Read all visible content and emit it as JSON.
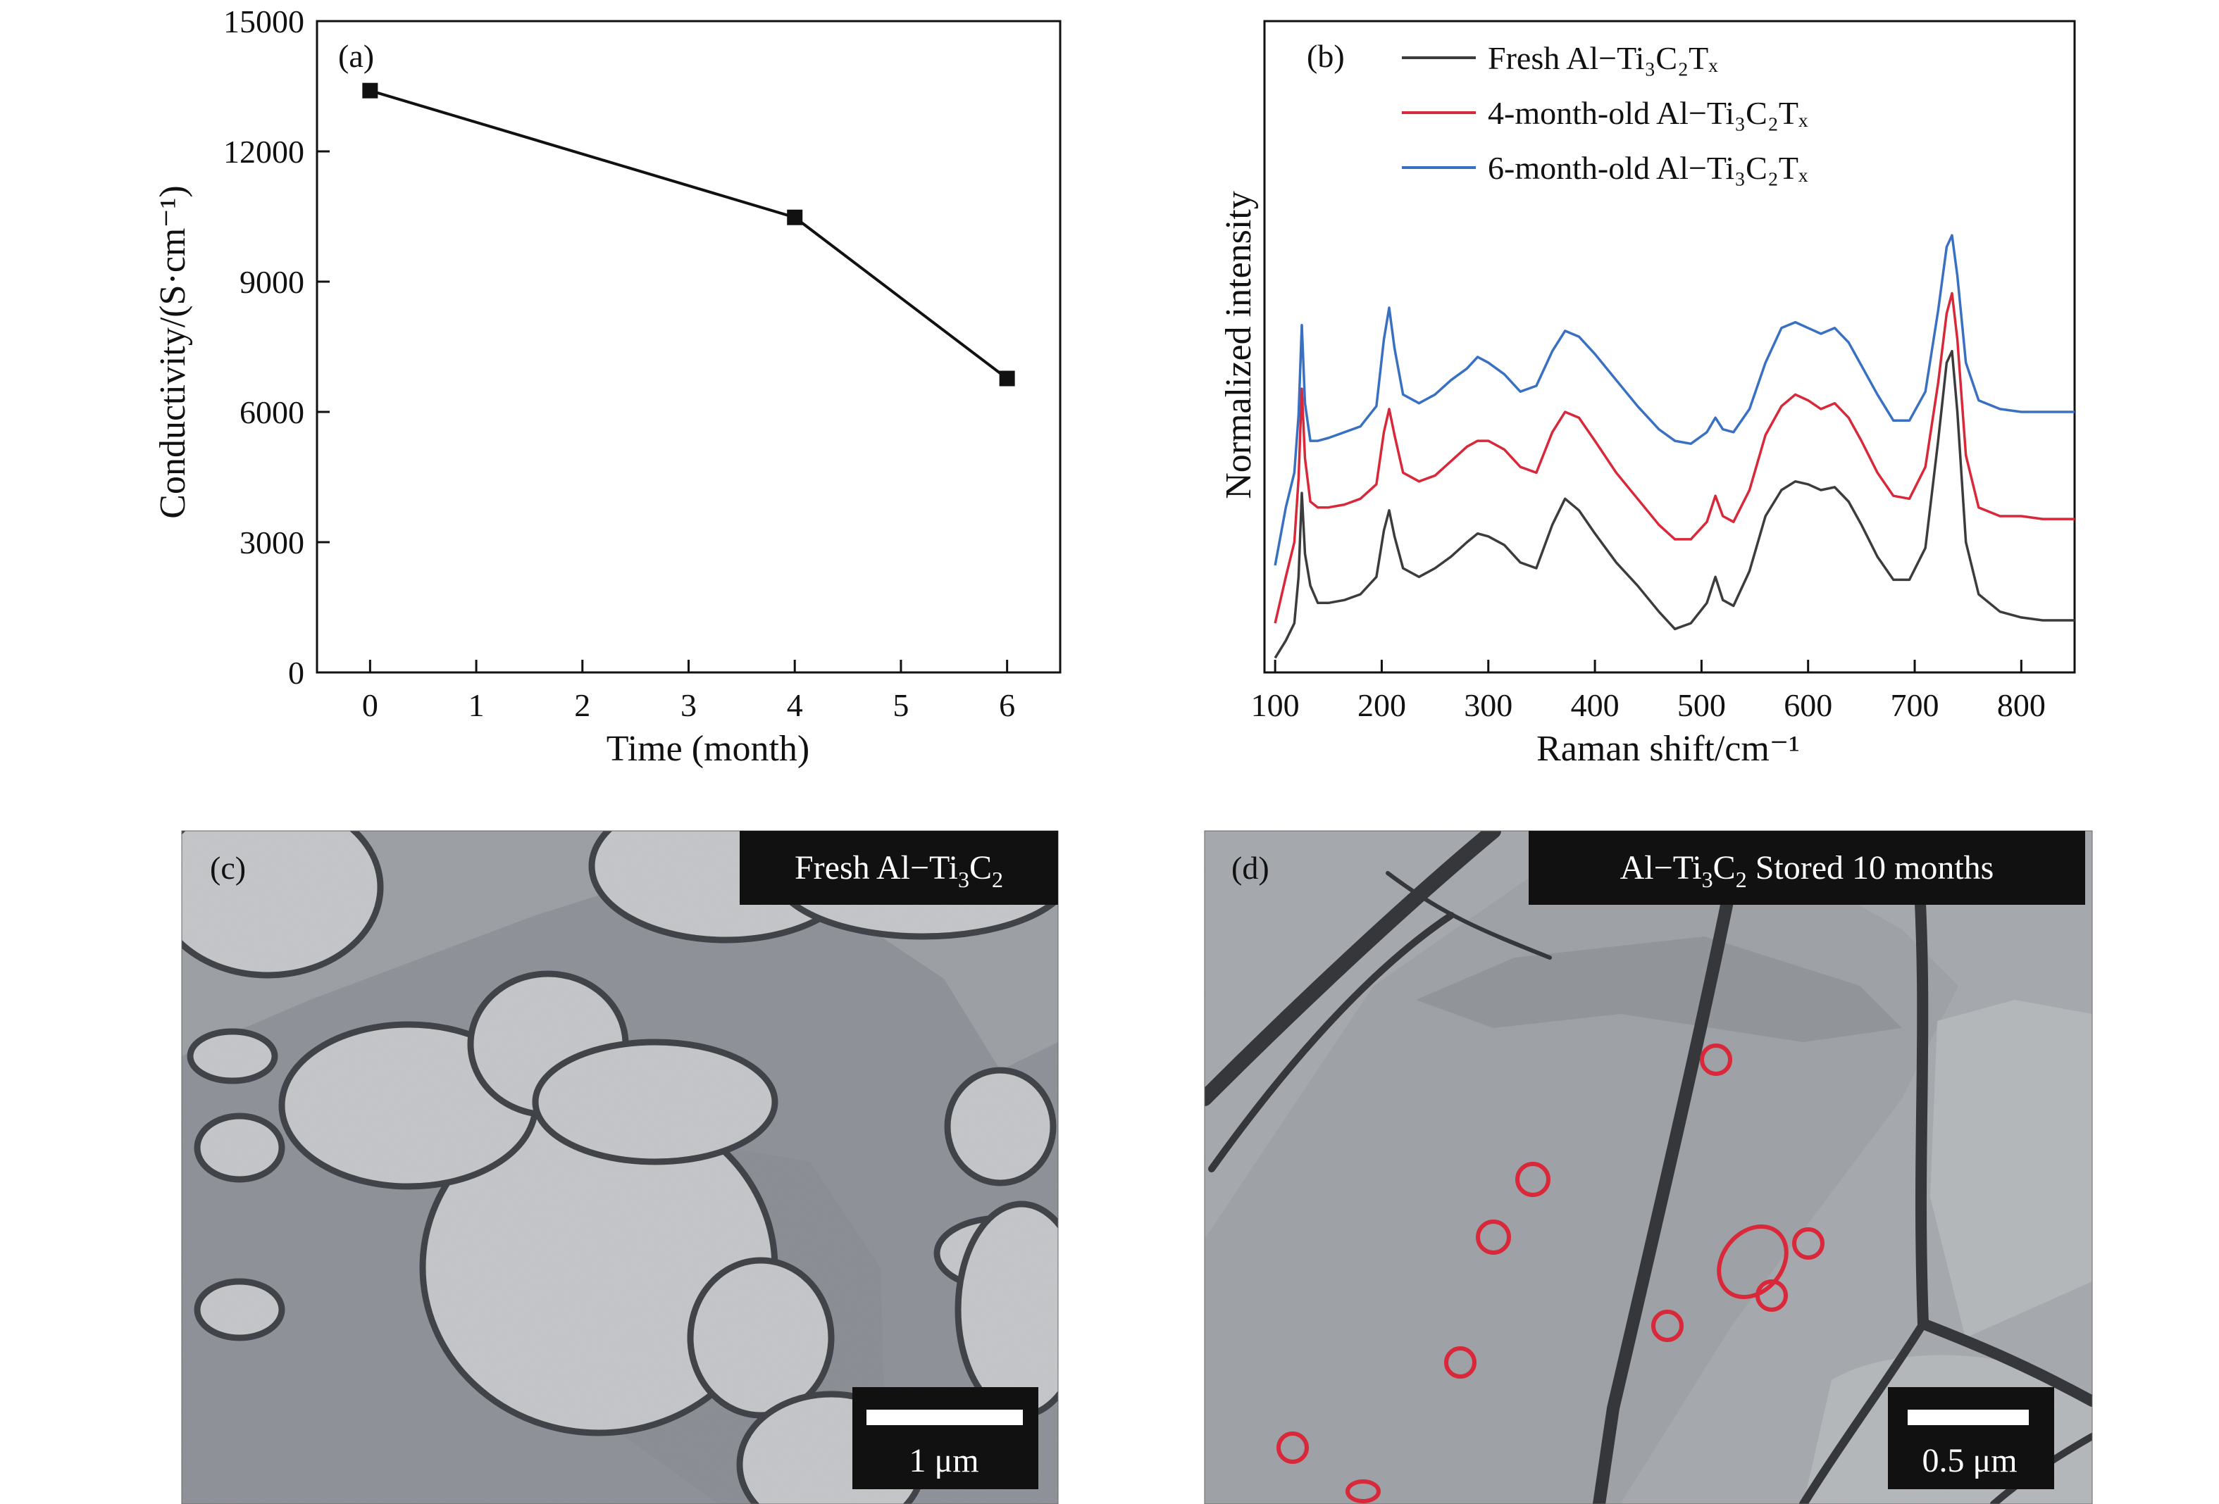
{
  "panels": {
    "a": {
      "label": "(a)",
      "chart_data": {
        "type": "line",
        "x": [
          0,
          4,
          6
        ],
        "values": [
          13400,
          10480,
          6770
        ],
        "xlabel": "Time (month)",
        "ylabel": "Conductivity/(S·cm⁻¹)",
        "xlim": [
          -0.5,
          6.5
        ],
        "ylim": [
          0,
          15000
        ],
        "xticks": [
          0,
          1,
          2,
          3,
          4,
          5,
          6
        ],
        "yticks": [
          0,
          3000,
          6000,
          9000,
          12000,
          15000
        ],
        "marker": "square",
        "line_color": "#111111",
        "grid": false
      }
    },
    "b": {
      "label": "(b)",
      "chart_data": {
        "type": "line",
        "xlabel": "Raman shift/cm⁻¹",
        "ylabel": "Normalized intensity",
        "xlim": [
          90,
          850
        ],
        "xticks": [
          100,
          200,
          300,
          400,
          500,
          600,
          700,
          800
        ],
        "y_tick_labels": false,
        "grid": false,
        "legend_position": "top",
        "x": [
          100,
          110,
          118,
          122,
          125,
          128,
          133,
          140,
          150,
          165,
          180,
          195,
          202,
          207,
          212,
          220,
          235,
          250,
          265,
          280,
          290,
          300,
          315,
          330,
          345,
          360,
          372,
          385,
          400,
          420,
          440,
          460,
          475,
          490,
          505,
          513,
          520,
          530,
          545,
          560,
          575,
          588,
          600,
          612,
          625,
          638,
          650,
          665,
          680,
          695,
          710,
          722,
          730,
          735,
          740,
          748,
          760,
          780,
          800,
          820,
          850
        ],
        "series": [
          {
            "name": "Fresh Al−Ti₃C₂Tₓ",
            "color": "#3c3c3c",
            "values": [
              0.0,
              0.6,
              1.2,
              2.8,
              5.7,
              3.6,
              2.5,
              1.9,
              1.9,
              2.0,
              2.2,
              2.8,
              4.4,
              5.1,
              4.2,
              3.1,
              2.8,
              3.1,
              3.5,
              4.0,
              4.3,
              4.2,
              3.9,
              3.3,
              3.1,
              4.6,
              5.5,
              5.1,
              4.3,
              3.3,
              2.5,
              1.6,
              1.0,
              1.2,
              1.9,
              2.8,
              2.0,
              1.8,
              3.0,
              4.9,
              5.8,
              6.1,
              6.0,
              5.8,
              5.9,
              5.4,
              4.6,
              3.5,
              2.7,
              2.7,
              3.8,
              7.5,
              10.2,
              10.6,
              8.5,
              4.0,
              2.2,
              1.6,
              1.4,
              1.3,
              1.3
            ]
          },
          {
            "name": "4-month-old Al−Ti₃C₂Tₓ",
            "color": "#d8283a",
            "values": [
              1.2,
              2.8,
              4.0,
              6.2,
              9.3,
              6.9,
              5.4,
              5.2,
              5.2,
              5.3,
              5.5,
              6.0,
              7.8,
              8.6,
              7.7,
              6.4,
              6.1,
              6.3,
              6.8,
              7.3,
              7.5,
              7.5,
              7.2,
              6.6,
              6.4,
              7.8,
              8.5,
              8.3,
              7.5,
              6.4,
              5.5,
              4.6,
              4.1,
              4.1,
              4.7,
              5.6,
              4.9,
              4.7,
              5.8,
              7.7,
              8.7,
              9.1,
              8.9,
              8.6,
              8.8,
              8.3,
              7.5,
              6.4,
              5.6,
              5.5,
              6.6,
              9.5,
              11.9,
              12.6,
              11.0,
              7.0,
              5.2,
              4.9,
              4.9,
              4.8,
              4.8
            ]
          },
          {
            "name": "6-month-old Al−Ti₃C₂Tₓ",
            "color": "#3a70c2",
            "values": [
              3.2,
              5.2,
              6.4,
              8.4,
              11.5,
              8.8,
              7.5,
              7.5,
              7.6,
              7.8,
              8.0,
              8.7,
              11.0,
              12.1,
              10.7,
              9.1,
              8.8,
              9.1,
              9.6,
              10.0,
              10.4,
              10.2,
              9.8,
              9.2,
              9.4,
              10.6,
              11.3,
              11.1,
              10.5,
              9.6,
              8.7,
              7.9,
              7.5,
              7.4,
              7.8,
              8.3,
              7.9,
              7.8,
              8.6,
              10.2,
              11.4,
              11.6,
              11.4,
              11.2,
              11.4,
              10.9,
              10.1,
              9.1,
              8.2,
              8.2,
              9.2,
              12.0,
              14.2,
              14.6,
              13.2,
              10.2,
              8.9,
              8.6,
              8.5,
              8.5,
              8.5
            ]
          }
        ]
      }
    },
    "c": {
      "label": "(c)",
      "title_prefix": "Fresh Al−Ti",
      "title_sub1": "3",
      "title_mid": "C",
      "title_sub2": "2",
      "title_suffix": "",
      "scale_bar": "1 μm",
      "scale_bar_length_um": 1
    },
    "d": {
      "label": "(d)",
      "title_prefix": "Al−Ti",
      "title_sub1": "3",
      "title_mid": "C",
      "title_sub2": "2",
      "title_suffix": " Stored 10 months",
      "scale_bar": "0.5 μm",
      "scale_bar_length_um": 0.5,
      "marker_color": "#d8283a"
    }
  }
}
